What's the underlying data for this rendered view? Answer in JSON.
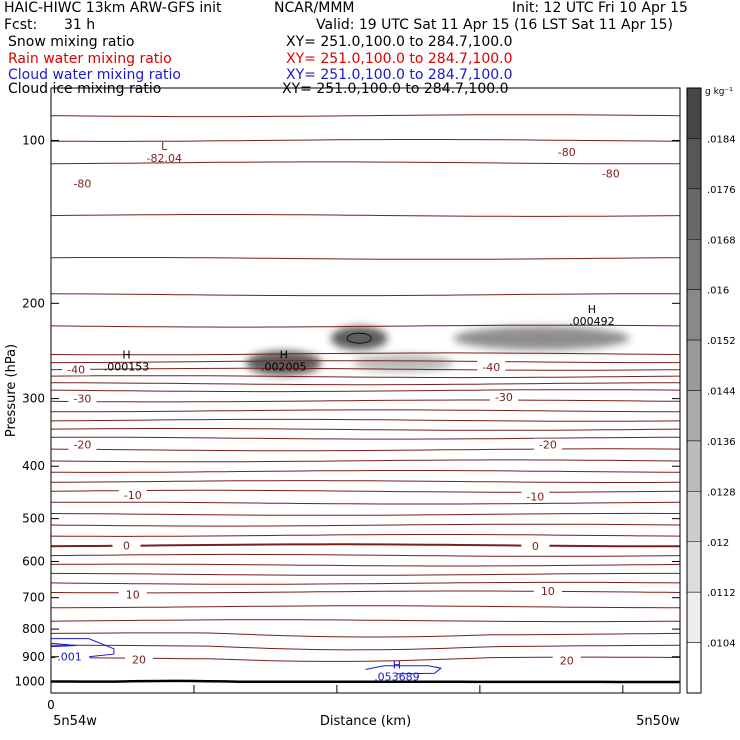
{
  "header": {
    "title": "HAIC-HIWC 13km ARW-GFS init",
    "org": "NCAR/MMM",
    "init": "Init: 12 UTC Fri 10 Apr 15",
    "fcst_label": "Fcst:",
    "fcst_value": "31 h",
    "valid": "Valid: 19 UTC Sat 11 Apr 15 (16 LST Sat 11 Apr 15)"
  },
  "legend": {
    "entries": [
      {
        "name": "Snow mixing ratio",
        "xy": "XY= 251.0,100.0 to 284.7,100.0",
        "color": "#000000"
      },
      {
        "name": "Rain water mixing ratio",
        "xy": "XY= 251.0,100.0 to 284.7,100.0",
        "color": "#dd0000"
      },
      {
        "name": "Cloud water mixing ratio",
        "xy": "XY= 251.0,100.0 to 284.7,100.0",
        "color": "#1a1acc"
      },
      {
        "name": "Cloud ice mixing ratio",
        "xy": "XY= 251.0,100.0 to 284.7,100.0",
        "color": "#000000"
      }
    ]
  },
  "colors": {
    "temperature_contour": "#7a1e1e",
    "cloud_water_contour": "#1a1acc",
    "ground_line": "#000000",
    "shading_dark": "#555555"
  },
  "chart_data": {
    "type": "contour",
    "yaxis": {
      "label": "Pressure (hPa)",
      "ticks": [
        100,
        200,
        300,
        400,
        500,
        600,
        700,
        800,
        900,
        1000
      ],
      "range": [
        1050,
        80
      ],
      "scale": "log"
    },
    "xaxis": {
      "label": "Distance (km)",
      "zero_label": "0",
      "left_label": "5n54w",
      "right_label": "5n50w",
      "range": [
        0,
        1
      ]
    },
    "colorbar": {
      "unit": "g kg⁻¹",
      "levels": [
        ".0104",
        ".0112",
        ".012",
        ".0128",
        ".0136",
        ".0144",
        ".0152",
        ".016",
        ".0168",
        ".0176",
        ".0184"
      ]
    },
    "temperature_isotherms": [
      {
        "label": "-80",
        "p": 110,
        "label_at": [
          [
            0.05,
            120
          ],
          [
            0.82,
            105
          ],
          [
            0.89,
            115
          ]
        ]
      },
      {
        "label": "-40",
        "p": 248,
        "label_at": [
          [
            0.04,
            265
          ],
          [
            0.7,
            262
          ]
        ]
      },
      {
        "label": "-30",
        "p": 290,
        "label_at": [
          [
            0.05,
            300
          ],
          [
            0.72,
            298
          ]
        ]
      },
      {
        "label": "-20",
        "p": 355,
        "label_at": [
          [
            0.05,
            365
          ],
          [
            0.79,
            365
          ]
        ]
      },
      {
        "label": "-10",
        "p": 445,
        "label_at": [
          [
            0.13,
            452
          ],
          [
            0.77,
            455
          ]
        ]
      },
      {
        "label": "0",
        "p": 560,
        "label_at": [
          [
            0.12,
            560
          ],
          [
            0.77,
            562
          ]
        ]
      },
      {
        "label": "10",
        "p": 683,
        "label_at": [
          [
            0.13,
            690
          ],
          [
            0.79,
            680
          ]
        ]
      },
      {
        "label": "20",
        "p": 905,
        "label_at": [
          [
            0.14,
            910
          ],
          [
            0.82,
            915
          ]
        ]
      }
    ],
    "annotations": [
      {
        "text": "L",
        "value": "-82.04",
        "x": 0.18,
        "p": 105
      },
      {
        "text": "H",
        "value": ".000153",
        "x": 0.12,
        "p": 255
      },
      {
        "text": "H",
        "value": ".002005",
        "x": 0.37,
        "p": 255
      },
      {
        "text": "H",
        "value": ".000492",
        "x": 0.86,
        "p": 210
      },
      {
        "text": "H",
        "value": ".053689",
        "x": 0.55,
        "p": 955
      }
    ],
    "cloud_water_label": ".001",
    "cloud_ice_shading": [
      {
        "x": 0.37,
        "p": 258,
        "wx": 0.06,
        "wp": 14,
        "value": 0.0184
      },
      {
        "x": 0.49,
        "p": 232,
        "wx": 0.045,
        "wp": 12,
        "value": 0.0184
      },
      {
        "x": 0.56,
        "p": 258,
        "wx": 0.08,
        "wp": 10,
        "value": 0.012
      },
      {
        "x": 0.78,
        "p": 232,
        "wx": 0.14,
        "wp": 12,
        "value": 0.015
      }
    ]
  }
}
